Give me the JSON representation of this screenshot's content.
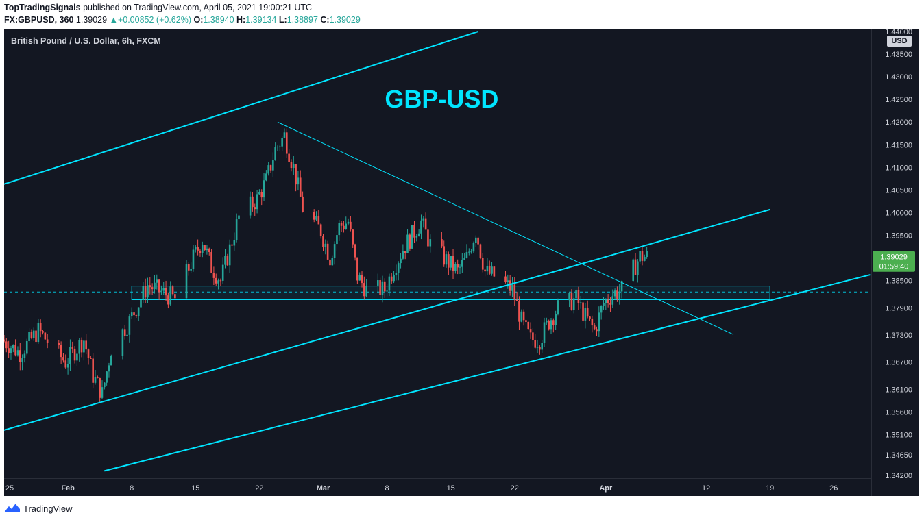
{
  "header": {
    "author": "TopTradingSignals",
    "published": "published on TradingView.com, April 05, 2021 19:00:21 UTC",
    "symbol": "FX:GBPUSD, 360",
    "last": "1.39029",
    "change_arrow": "▲",
    "change": "+0.00852 (+0.62%)",
    "o_label": "O:",
    "o": "1.38940",
    "h_label": "H:",
    "h": "1.39134",
    "l_label": "L:",
    "l": "1.38897",
    "c_label": "C:",
    "c": "1.39029"
  },
  "chart_title": "British Pound / U.S. Dollar, 6h, FXCM",
  "currency_badge": "USD",
  "footer": {
    "brand": "TradingView",
    "logo_icon": "tradingview-logo-icon"
  },
  "chart_data": {
    "type": "candlestick",
    "symbol": "GBPUSD",
    "timeframe": "6h",
    "annotation": "GBP-USD",
    "colors": {
      "background": "#131722",
      "up": "#26a69a",
      "down": "#ef5350",
      "trendline": "#00e5ff",
      "annotation": "#00e5ff",
      "axis_text": "#d1d4dc",
      "price_label": "#4caf50"
    },
    "y_axis": {
      "ticks": [
        "1.44000",
        "1.43500",
        "1.43000",
        "1.42500",
        "1.42000",
        "1.41500",
        "1.41000",
        "1.40500",
        "1.40000",
        "1.39500",
        "1.39029",
        "1.38500",
        "1.37900",
        "1.37300",
        "1.36700",
        "1.36100",
        "1.35600",
        "1.35100",
        "1.34650",
        "1.34200"
      ],
      "ylim": [
        1.342,
        1.44
      ]
    },
    "x_axis": {
      "ticks": [
        "25",
        "Feb",
        "8",
        "15",
        "22",
        "Mar",
        "8",
        "15",
        "22",
        "Apr",
        "12",
        "19",
        "26"
      ],
      "start": "2021-01-25",
      "end": "2021-04-30"
    },
    "current_price": {
      "value": "1.39029",
      "countdown": "01:59:40"
    },
    "dashed_level": 1.3825,
    "support_zone": {
      "from_date": "2021-02-08",
      "to_date": "2021-04-19",
      "low": 1.3808,
      "high": 1.3838
    },
    "trendlines": [
      {
        "name": "channel-upper",
        "from": [
          "2021-01-25",
          1.4063
        ],
        "to": [
          "2021-03-18",
          1.44
        ]
      },
      {
        "name": "channel-middle",
        "from": [
          "2021-01-25",
          1.352
        ],
        "to": [
          "2021-04-19",
          1.4007
        ]
      },
      {
        "name": "channel-lower",
        "from": [
          "2021-02-05",
          1.343
        ],
        "to": [
          "2021-04-30",
          1.3863
        ]
      },
      {
        "name": "descending-trendline",
        "from": [
          "2021-02-24",
          1.42
        ],
        "to": [
          "2021-04-15",
          1.3731
        ]
      }
    ],
    "candles_note": "approx. 6h OHLC reconstruction",
    "close_path": [
      [
        "2021-01-25",
        1.372
      ],
      [
        "2021-01-27",
        1.369
      ],
      [
        "2021-01-29",
        1.374
      ],
      [
        "2021-02-01",
        1.367
      ],
      [
        "2021-02-03",
        1.372
      ],
      [
        "2021-02-04",
        1.364
      ],
      [
        "2021-02-05",
        1.36
      ],
      [
        "2021-02-06",
        1.37
      ],
      [
        "2021-02-08",
        1.376
      ],
      [
        "2021-02-10",
        1.384
      ],
      [
        "2021-02-11",
        1.383
      ],
      [
        "2021-02-12",
        1.382
      ],
      [
        "2021-02-13",
        1.381
      ],
      [
        "2021-02-15",
        1.39
      ],
      [
        "2021-02-16",
        1.394
      ],
      [
        "2021-02-17",
        1.388
      ],
      [
        "2021-02-18",
        1.385
      ],
      [
        "2021-02-19",
        1.392
      ],
      [
        "2021-02-20",
        1.399
      ],
      [
        "2021-02-22",
        1.403
      ],
      [
        "2021-02-23",
        1.407
      ],
      [
        "2021-02-24",
        1.414
      ],
      [
        "2021-02-25",
        1.417
      ],
      [
        "2021-02-26",
        1.41
      ],
      [
        "2021-02-27",
        1.401
      ],
      [
        "2021-03-01",
        1.396
      ],
      [
        "2021-03-02",
        1.39
      ],
      [
        "2021-03-03",
        1.397
      ],
      [
        "2021-03-04",
        1.398
      ],
      [
        "2021-03-05",
        1.386
      ],
      [
        "2021-03-06",
        1.383
      ],
      [
        "2021-03-08",
        1.383
      ],
      [
        "2021-03-09",
        1.388
      ],
      [
        "2021-03-10",
        1.392
      ],
      [
        "2021-03-11",
        1.395
      ],
      [
        "2021-03-12",
        1.398
      ],
      [
        "2021-03-13",
        1.393
      ],
      [
        "2021-03-15",
        1.389
      ],
      [
        "2021-03-16",
        1.387
      ],
      [
        "2021-03-17",
        1.39
      ],
      [
        "2021-03-18",
        1.396
      ],
      [
        "2021-03-19",
        1.387
      ],
      [
        "2021-03-20",
        1.386
      ],
      [
        "2021-03-22",
        1.383
      ],
      [
        "2021-03-23",
        1.376
      ],
      [
        "2021-03-24",
        1.372
      ],
      [
        "2021-03-25",
        1.372
      ],
      [
        "2021-03-26",
        1.376
      ],
      [
        "2021-03-27",
        1.379
      ],
      [
        "2021-03-29",
        1.381
      ],
      [
        "2021-03-30",
        1.377
      ],
      [
        "2021-03-31",
        1.374
      ],
      [
        "2021-04-01",
        1.38
      ],
      [
        "2021-04-02",
        1.382
      ],
      [
        "2021-04-03",
        1.383
      ],
      [
        "2021-04-05",
        1.3903
      ]
    ]
  }
}
